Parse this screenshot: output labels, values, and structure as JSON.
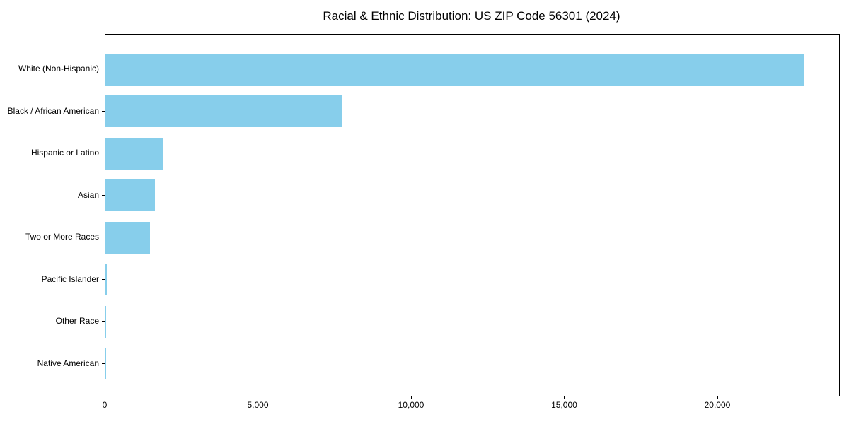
{
  "figure": {
    "background_color": "#ffffff",
    "title": "Racial & Ethnic Distribution: US ZIP Code 56301 (2024)"
  },
  "chart_data": {
    "type": "bar",
    "orientation": "horizontal",
    "title": "Racial & Ethnic Distribution: US ZIP Code 56301 (2024)",
    "categories": [
      "White (Non-Hispanic)",
      "Black / African American",
      "Hispanic or Latino",
      "Asian",
      "Two or More Races",
      "Pacific Islander",
      "Other Race",
      "Native American"
    ],
    "values": [
      22820,
      7715,
      1870,
      1620,
      1450,
      35,
      20,
      10
    ],
    "bar_color": "#87CEEB",
    "axis_color": "#000000",
    "text_color": "#000000",
    "xlabel": "",
    "ylabel": "",
    "xlim": [
      0,
      23950
    ],
    "xticks": [
      {
        "value": 0,
        "label": "0"
      },
      {
        "value": 5000,
        "label": "5,000"
      },
      {
        "value": 10000,
        "label": "10,000"
      },
      {
        "value": 15000,
        "label": "15,000"
      },
      {
        "value": 20000,
        "label": "20,000"
      }
    ],
    "grid": false,
    "legend": null
  }
}
